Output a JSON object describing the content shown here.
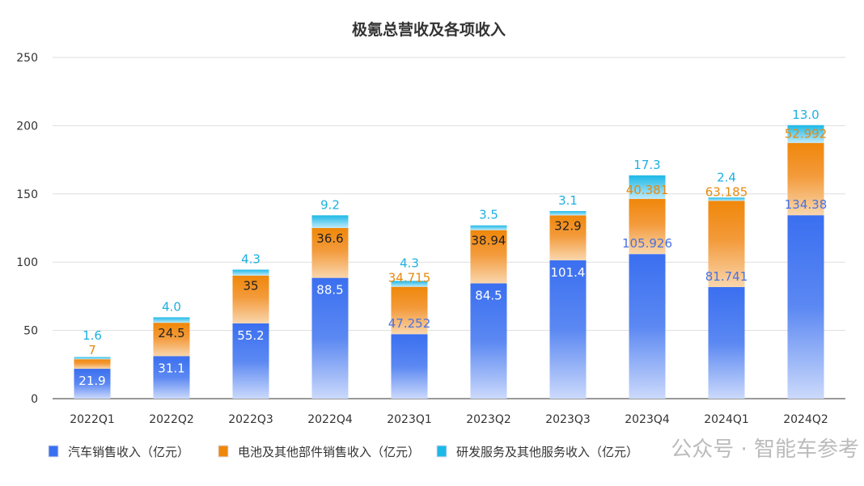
{
  "chart_data": {
    "type": "bar",
    "stacked": true,
    "title": "极氪总营收及各项收入",
    "categories": [
      "2022Q1",
      "2022Q2",
      "2022Q3",
      "2022Q4",
      "2023Q1",
      "2023Q2",
      "2023Q3",
      "2023Q4",
      "2024Q1",
      "2024Q2"
    ],
    "ylim": [
      0,
      250
    ],
    "yticks": [
      0,
      50,
      100,
      150,
      200,
      250
    ],
    "grid": true,
    "legend_position": "bottom",
    "series": [
      {
        "name": "汽车销售收入（亿元）",
        "color": "#3a6ff0",
        "values": [
          21.9,
          31.1,
          55.2,
          88.5,
          47.252,
          84.5,
          101.4,
          105.926,
          81.741,
          134.38
        ],
        "labels": [
          "21.9",
          "31.1",
          "55.2",
          "88.5",
          "47.252",
          "84.5",
          "101.4",
          "105.926",
          "81.741",
          "134.38"
        ]
      },
      {
        "name": "电池及其他部件销售收入（亿元）",
        "color": "#f0870a",
        "values": [
          7,
          24.5,
          35,
          36.6,
          34.715,
          38.94,
          32.9,
          40.381,
          63.185,
          52.992
        ],
        "labels": [
          "7",
          "24.5",
          "35",
          "36.6",
          "34.715",
          "38.94",
          "32.9",
          "40.381",
          "63.185",
          "52.992"
        ]
      },
      {
        "name": "研发服务及其他服务收入（亿元）",
        "color": "#1cb8e6",
        "values": [
          1.6,
          4.0,
          4.3,
          9.2,
          4.3,
          3.5,
          3.1,
          17.3,
          2.4,
          13.0
        ],
        "labels": [
          "1.6",
          "4.0",
          "4.3",
          "9.2",
          "4.3",
          "3.5",
          "3.1",
          "17.3",
          "2.4",
          "13.0"
        ]
      }
    ]
  },
  "watermark": "公众号 · 智能车参考"
}
